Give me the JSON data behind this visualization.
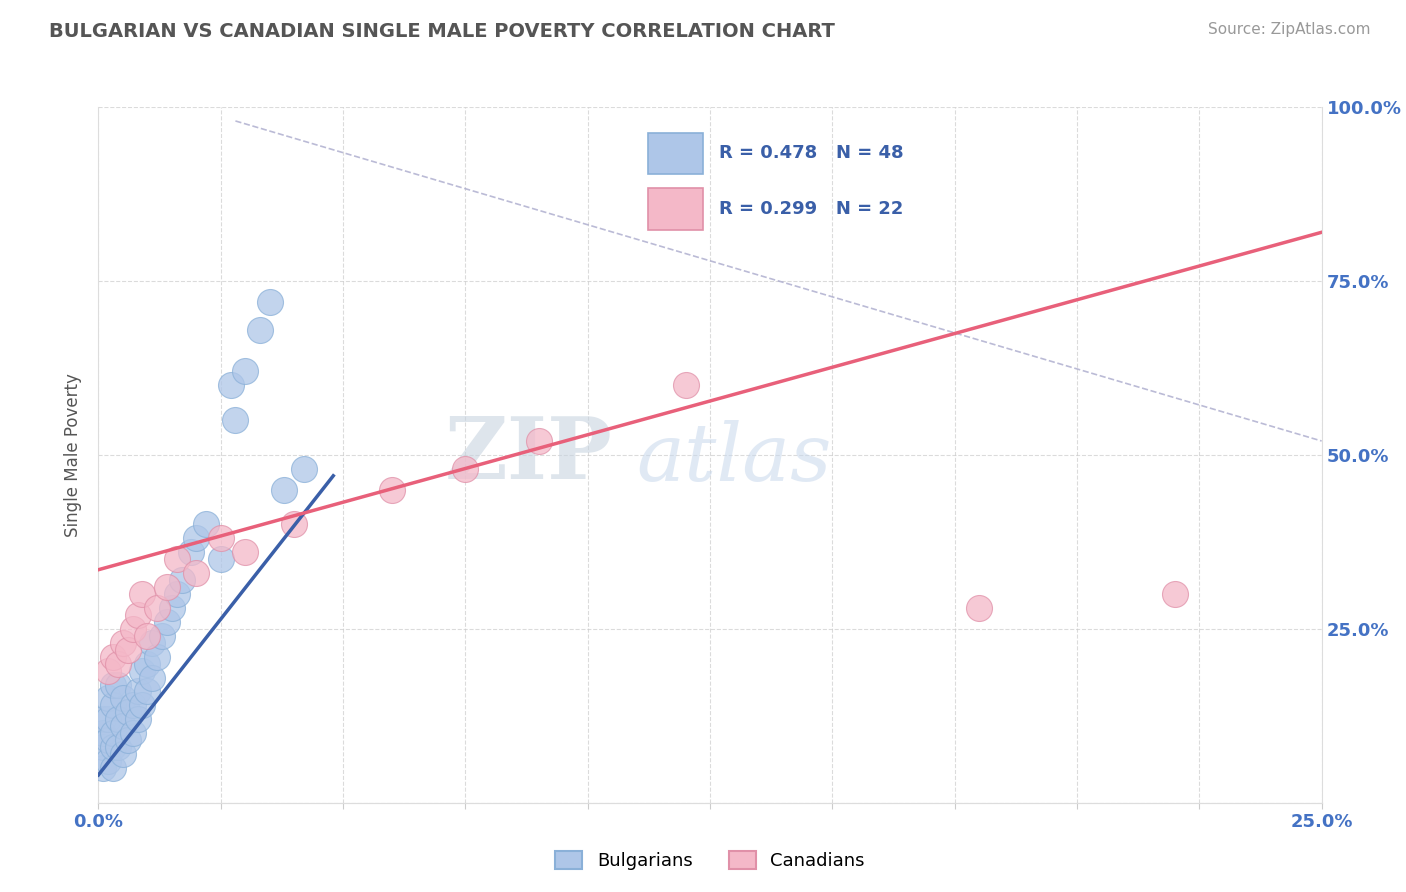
{
  "title": "BULGARIAN VS CANADIAN SINGLE MALE POVERTY CORRELATION CHART",
  "source_text": "Source: ZipAtlas.com",
  "ylabel": "Single Male Poverty",
  "watermark_part1": "ZIP",
  "watermark_part2": "atlas",
  "xlim": [
    0.0,
    0.25
  ],
  "ylim": [
    0.0,
    1.0
  ],
  "bulgarian_color": "#aec6e8",
  "canadian_color": "#f4b8c8",
  "blue_line_color": "#3a5fa8",
  "pink_line_color": "#e8607a",
  "legend_R_blue": "R = 0.478",
  "legend_N_blue": "N = 48",
  "legend_R_pink": "R = 0.299",
  "legend_N_pink": "N = 22",
  "grid_color": "#cccccc",
  "title_color": "#555555",
  "axis_label_color": "#4472c4",
  "diag_color": "#aaaacc",
  "bulgarians_x": [
    0.001,
    0.001,
    0.001,
    0.001,
    0.002,
    0.002,
    0.002,
    0.002,
    0.003,
    0.003,
    0.003,
    0.003,
    0.003,
    0.004,
    0.004,
    0.004,
    0.005,
    0.005,
    0.005,
    0.006,
    0.006,
    0.007,
    0.007,
    0.008,
    0.008,
    0.009,
    0.009,
    0.01,
    0.01,
    0.011,
    0.011,
    0.012,
    0.013,
    0.014,
    0.015,
    0.016,
    0.017,
    0.019,
    0.02,
    0.022,
    0.025,
    0.027,
    0.028,
    0.03,
    0.033,
    0.035,
    0.038,
    0.042
  ],
  "bulgarians_y": [
    0.05,
    0.08,
    0.1,
    0.12,
    0.06,
    0.09,
    0.12,
    0.15,
    0.05,
    0.08,
    0.1,
    0.14,
    0.17,
    0.08,
    0.12,
    0.17,
    0.07,
    0.11,
    0.15,
    0.09,
    0.13,
    0.1,
    0.14,
    0.12,
    0.16,
    0.14,
    0.19,
    0.16,
    0.2,
    0.18,
    0.23,
    0.21,
    0.24,
    0.26,
    0.28,
    0.3,
    0.32,
    0.36,
    0.38,
    0.4,
    0.35,
    0.6,
    0.55,
    0.62,
    0.68,
    0.72,
    0.45,
    0.48
  ],
  "canadians_x": [
    0.002,
    0.003,
    0.004,
    0.005,
    0.006,
    0.007,
    0.008,
    0.009,
    0.01,
    0.012,
    0.014,
    0.016,
    0.02,
    0.025,
    0.03,
    0.04,
    0.06,
    0.075,
    0.09,
    0.12,
    0.18,
    0.22
  ],
  "canadians_y": [
    0.19,
    0.21,
    0.2,
    0.23,
    0.22,
    0.25,
    0.27,
    0.3,
    0.24,
    0.28,
    0.31,
    0.35,
    0.33,
    0.38,
    0.36,
    0.4,
    0.45,
    0.48,
    0.52,
    0.6,
    0.28,
    0.3
  ],
  "blue_line_x": [
    0.0,
    0.048
  ],
  "blue_line_y": [
    0.04,
    0.47
  ],
  "pink_line_x": [
    0.0,
    0.25
  ],
  "pink_line_y": [
    0.335,
    0.82
  ],
  "diag_line_x": [
    0.028,
    0.25
  ],
  "diag_line_y": [
    0.98,
    0.52
  ]
}
